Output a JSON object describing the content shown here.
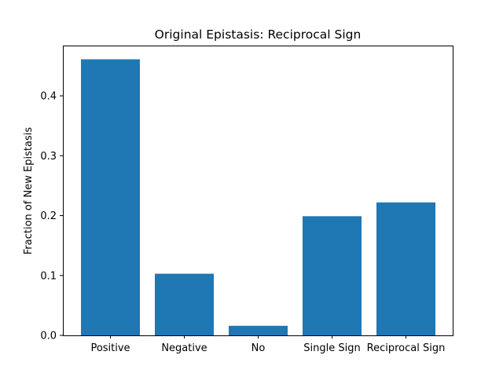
{
  "chart_data": {
    "type": "bar",
    "title": "Original Epistasis: Reciprocal Sign",
    "xlabel": "",
    "ylabel": "Fraction of New Epistasis",
    "categories": [
      "Positive",
      "Negative",
      "No",
      "Single Sign",
      "Reciprocal Sign"
    ],
    "values": [
      0.461,
      0.103,
      0.016,
      0.199,
      0.222
    ],
    "ylim": [
      0,
      0.484
    ],
    "yticks": [
      0.0,
      0.1,
      0.2,
      0.3,
      0.4
    ],
    "ytick_labels": [
      "0.0",
      "0.1",
      "0.2",
      "0.3",
      "0.4"
    ],
    "grid": false,
    "bar_color": "#1f77b4"
  }
}
